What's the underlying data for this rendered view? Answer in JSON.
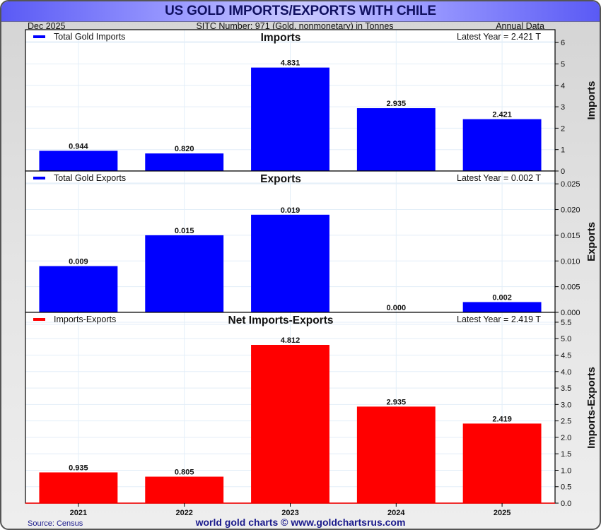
{
  "header": {
    "title": "US GOLD IMPORTS/EXPORTS WITH CHILE",
    "date": "Dec  2025",
    "subtitle": "SITC Number: 971 (Gold, nonmonetary) in Tonnes",
    "frequency": "Annual Data"
  },
  "footer": {
    "source": "Source: Census",
    "credit": "world gold charts © www.goldchartsrus.com"
  },
  "colors": {
    "imports": "#0000ff",
    "exports": "#0000ff",
    "net": "#ff0000",
    "grid": "#e3eef8"
  },
  "chart_data": [
    {
      "type": "bar",
      "title": "Imports",
      "legend": "Total Gold Imports",
      "latest_label": "Latest Year = 2.421 T",
      "ylabel": "Imports",
      "categories": [
        "2021",
        "2022",
        "2023",
        "2024",
        "2025"
      ],
      "values": [
        0.944,
        0.82,
        4.831,
        2.935,
        2.421
      ],
      "value_labels": [
        "0.944",
        "0.820",
        "4.831",
        "2.935",
        "2.421"
      ],
      "ylim": [
        0,
        6.6
      ],
      "yticks": [
        0,
        1,
        2,
        3,
        4,
        5,
        6
      ],
      "ytick_labels": [
        "0",
        "1",
        "2",
        "3",
        "4",
        "5",
        "6"
      ],
      "color": "#0000ff",
      "grid": true,
      "legend_position": "top-left"
    },
    {
      "type": "bar",
      "title": "Exports",
      "legend": "Total Gold Exports",
      "latest_label": "Latest Year = 0.002 T",
      "ylabel": "Exports",
      "categories": [
        "2021",
        "2022",
        "2023",
        "2024",
        "2025"
      ],
      "values": [
        0.009,
        0.015,
        0.019,
        0.0,
        0.002
      ],
      "value_labels": [
        "0.009",
        "0.015",
        "0.019",
        "0.000",
        "0.002"
      ],
      "ylim": [
        0,
        0.0275
      ],
      "yticks": [
        0,
        0.005,
        0.01,
        0.015,
        0.02,
        0.025
      ],
      "ytick_labels": [
        "0.000",
        "0.005",
        "0.010",
        "0.015",
        "0.020",
        "0.025"
      ],
      "color": "#0000ff",
      "grid": true,
      "legend_position": "top-left"
    },
    {
      "type": "bar",
      "title": "Net Imports-Exports",
      "legend": "Imports-Exports",
      "latest_label": "Latest Year = 2.419 T",
      "ylabel": "Imports-Exports",
      "categories": [
        "2021",
        "2022",
        "2023",
        "2024",
        "2025"
      ],
      "values": [
        0.935,
        0.805,
        4.812,
        2.935,
        2.419
      ],
      "value_labels": [
        "0.935",
        "0.805",
        "4.812",
        "2.935",
        "2.419"
      ],
      "ylim": [
        0,
        5.8
      ],
      "yticks": [
        0,
        0.5,
        1,
        1.5,
        2,
        2.5,
        3,
        3.5,
        4,
        4.5,
        5,
        5.5
      ],
      "ytick_labels": [
        "0.0",
        "0.5",
        "1.0",
        "1.5",
        "2.0",
        "2.5",
        "3.0",
        "3.5",
        "4.0",
        "4.5",
        "5.0",
        "5.5"
      ],
      "color": "#ff0000",
      "grid": true,
      "legend_position": "top-left"
    }
  ]
}
